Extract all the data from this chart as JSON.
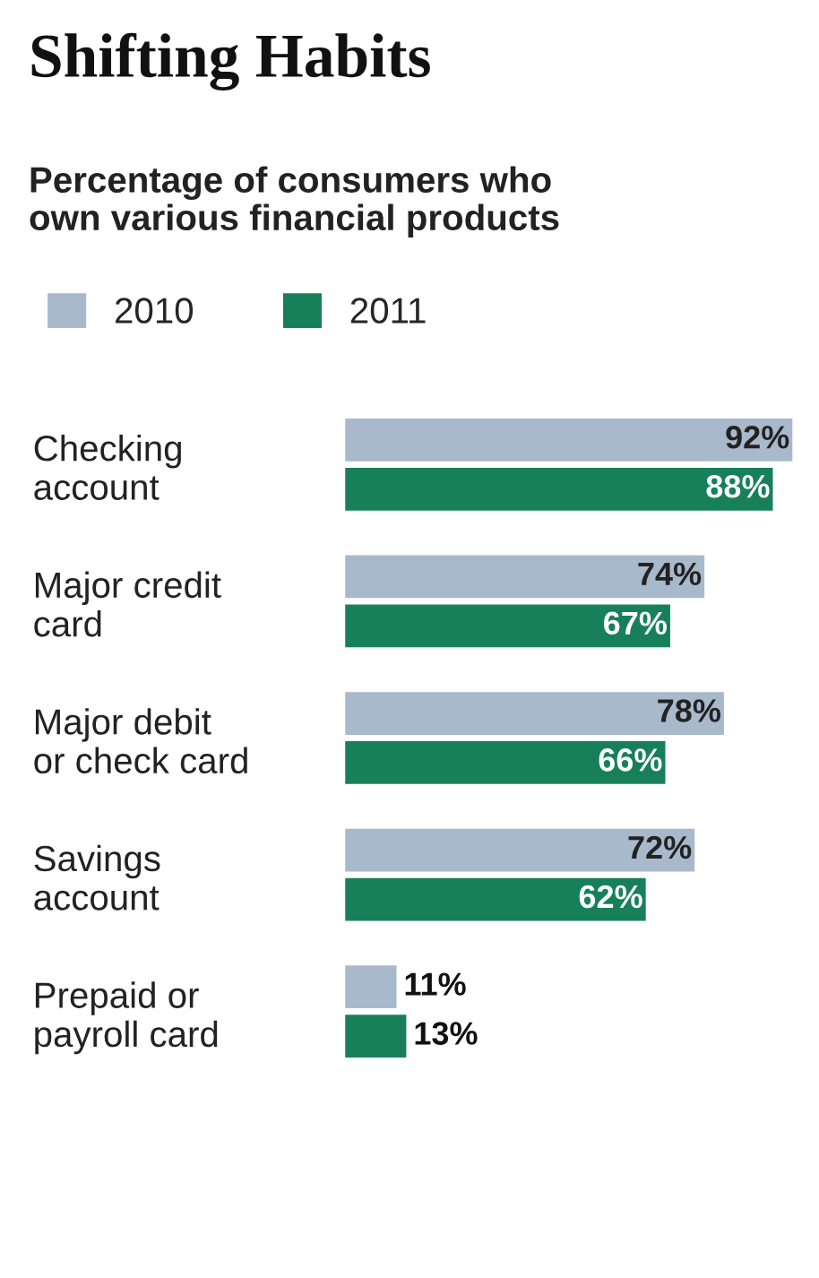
{
  "chart_data": {
    "type": "bar",
    "orientation": "horizontal",
    "title": "Shifting Habits",
    "subtitle": "Percentage of consumers who\nown various financial products",
    "categories": [
      "Checking\naccount",
      "Major credit\ncard",
      "Major debit\nor check card",
      "Savings\naccount",
      "Prepaid or\npayroll card"
    ],
    "series": [
      {
        "name": "2010",
        "color": "#a9b9cc",
        "values": [
          92,
          74,
          78,
          72,
          11
        ],
        "value_labels": [
          "92%",
          "74%",
          "78%",
          "72%",
          "11%"
        ]
      },
      {
        "name": "2011",
        "color": "#17805a",
        "values": [
          88,
          67,
          66,
          62,
          13
        ],
        "value_labels": [
          "88%",
          "67%",
          "66%",
          "62%",
          "13%"
        ]
      }
    ],
    "xlim": [
      0,
      93
    ],
    "legend": "top left",
    "grid": false
  }
}
